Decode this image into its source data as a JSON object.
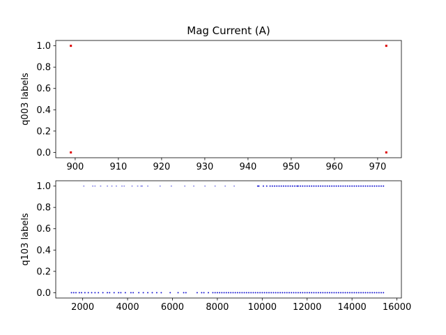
{
  "figure": {
    "title": "Mag Current (A)"
  },
  "chart_data": [
    {
      "type": "scatter",
      "title": "Mag Current (A)",
      "xlabel": "",
      "ylabel": "q003 labels",
      "xlim": [
        895.5,
        975.5
      ],
      "ylim": [
        -0.05,
        1.05
      ],
      "xticks": [
        900,
        910,
        920,
        930,
        940,
        950,
        960,
        970
      ],
      "yticks": [
        0.0,
        0.2,
        0.4,
        0.6,
        0.8,
        1.0
      ],
      "xtick_labels": [
        "900",
        "910",
        "920",
        "930",
        "940",
        "950",
        "960",
        "970"
      ],
      "ytick_labels": [
        "0.0",
        "0.2",
        "0.4",
        "0.6",
        "0.8",
        "1.0"
      ],
      "grid": false,
      "color": "#dd0000",
      "points": [
        {
          "x": 899,
          "y": 1
        },
        {
          "x": 899,
          "y": 0
        },
        {
          "x": 972,
          "y": 1
        },
        {
          "x": 972,
          "y": 0
        }
      ]
    },
    {
      "type": "scatter",
      "title": "",
      "xlabel": "",
      "ylabel": "q103 labels",
      "xlim": [
        800,
        16200
      ],
      "ylim": [
        -0.05,
        1.05
      ],
      "xticks": [
        2000,
        4000,
        6000,
        8000,
        10000,
        12000,
        14000,
        16000
      ],
      "yticks": [
        0.0,
        0.2,
        0.4,
        0.6,
        0.8,
        1.0
      ],
      "xtick_labels": [
        "2000",
        "4000",
        "6000",
        "8000",
        "10000",
        "12000",
        "14000",
        "16000"
      ],
      "ytick_labels": [
        "0.0",
        "0.2",
        "0.4",
        "0.6",
        "0.8",
        "1.0"
      ],
      "grid": false,
      "color": "#0000cc",
      "label1_x": [
        2050,
        2450,
        2550,
        2800,
        3100,
        3300,
        3500,
        3750,
        3850,
        4200,
        4450,
        4600,
        4650,
        4900,
        5450,
        5950,
        6550,
        6950,
        7450,
        7900,
        8350,
        8750,
        9800,
        9850,
        10050,
        10200,
        10350,
        10450,
        10550,
        10650,
        10750,
        10850,
        10950,
        11050,
        11150,
        11250,
        11350,
        11450,
        11550,
        11600,
        11700,
        11800,
        11900,
        12000,
        12100,
        12200,
        12300,
        12400,
        12500,
        12600,
        12700,
        12800,
        12900,
        13000,
        13100,
        13200,
        13300,
        13400,
        13500,
        13600,
        13700,
        13800,
        13900,
        14000,
        14100,
        14200,
        14300,
        14400,
        14500,
        14600,
        14700,
        14800,
        14900,
        15000,
        15100,
        15200,
        15300,
        15400
      ],
      "label0_x": [
        1500,
        1600,
        1700,
        1850,
        1950,
        2100,
        2250,
        2400,
        2550,
        2700,
        2900,
        3100,
        3200,
        3400,
        3600,
        3700,
        3900,
        4150,
        4250,
        4500,
        4700,
        4900,
        5100,
        5300,
        5500,
        5900,
        6250,
        6500,
        6600,
        7100,
        7300,
        7400,
        7600,
        7800,
        7900,
        8000,
        8100,
        8200,
        8300,
        8400,
        8500,
        8600,
        8700,
        8800,
        8900,
        9000,
        9100,
        9200,
        9300,
        9400,
        9500,
        9600,
        9700,
        9800,
        9900,
        10000,
        10100,
        10200,
        10300,
        10400,
        10500,
        10600,
        10700,
        10800,
        10900,
        11000,
        11100,
        11200,
        11300,
        11400,
        11500,
        11600,
        11700,
        11800,
        11900,
        12000,
        12100,
        12200,
        12300,
        12400,
        12500,
        12600,
        12700,
        12800,
        12900,
        13000,
        13100,
        13200,
        13300,
        13400,
        13500,
        13600,
        13700,
        13800,
        13900,
        14000,
        14100,
        14200,
        14300,
        14400,
        14500,
        14600,
        14700,
        14800,
        14900,
        15000,
        15100,
        15200,
        15300,
        15400
      ]
    }
  ]
}
